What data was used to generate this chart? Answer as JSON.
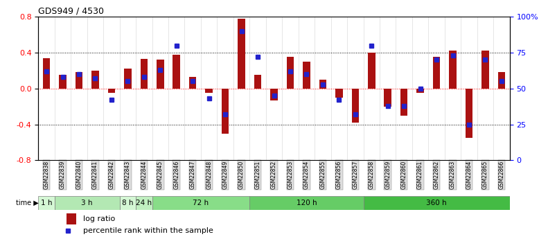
{
  "title": "GDS949 / 4530",
  "samples": [
    "GSM22838",
    "GSM22839",
    "GSM22840",
    "GSM22841",
    "GSM22842",
    "GSM22843",
    "GSM22844",
    "GSM22845",
    "GSM22846",
    "GSM22847",
    "GSM22848",
    "GSM22849",
    "GSM22850",
    "GSM22851",
    "GSM22852",
    "GSM22853",
    "GSM22854",
    "GSM22855",
    "GSM22856",
    "GSM22857",
    "GSM22858",
    "GSM22859",
    "GSM22860",
    "GSM22861",
    "GSM22862",
    "GSM22863",
    "GSM22864",
    "GSM22865",
    "GSM22866"
  ],
  "log_ratio": [
    0.34,
    0.15,
    0.18,
    0.2,
    -0.05,
    0.22,
    0.33,
    0.32,
    0.38,
    0.13,
    -0.05,
    -0.5,
    0.78,
    0.15,
    -0.13,
    0.35,
    0.3,
    0.1,
    -0.1,
    -0.38,
    0.4,
    -0.2,
    -0.3,
    -0.05,
    0.35,
    0.42,
    -0.55,
    0.42,
    0.18
  ],
  "percentile": [
    0.62,
    0.58,
    0.6,
    0.57,
    0.42,
    0.55,
    0.58,
    0.63,
    0.8,
    0.55,
    0.43,
    0.32,
    0.9,
    0.72,
    0.45,
    0.62,
    0.6,
    0.53,
    0.42,
    0.32,
    0.8,
    0.38,
    0.38,
    0.5,
    0.7,
    0.73,
    0.25,
    0.7,
    0.55
  ],
  "time_groups": [
    {
      "label": "1 h",
      "start": 0,
      "end": 1,
      "color": "#ccffcc"
    },
    {
      "label": "3 h",
      "start": 1,
      "end": 5,
      "color": "#99ee99"
    },
    {
      "label": "8 h",
      "start": 5,
      "end": 6,
      "color": "#ccffcc"
    },
    {
      "label": "24 h",
      "start": 6,
      "end": 7,
      "color": "#aaffaa"
    },
    {
      "label": "72 h",
      "start": 7,
      "end": 13,
      "color": "#77dd77"
    },
    {
      "label": "120 h",
      "start": 13,
      "end": 20,
      "color": "#55cc55"
    },
    {
      "label": "360 h",
      "start": 20,
      "end": 29,
      "color": "#33bb33"
    }
  ],
  "bar_color": "#aa1111",
  "dot_color": "#2222cc",
  "ylim": [
    -0.8,
    0.8
  ],
  "yticks_left": [
    -0.8,
    -0.4,
    0.0,
    0.4,
    0.8
  ],
  "yticks_right": [
    0,
    25,
    50,
    75,
    100
  ],
  "hlines": [
    0.4,
    0.0,
    -0.4
  ],
  "legend_log": "log ratio",
  "legend_pct": "percentile rank within the sample"
}
